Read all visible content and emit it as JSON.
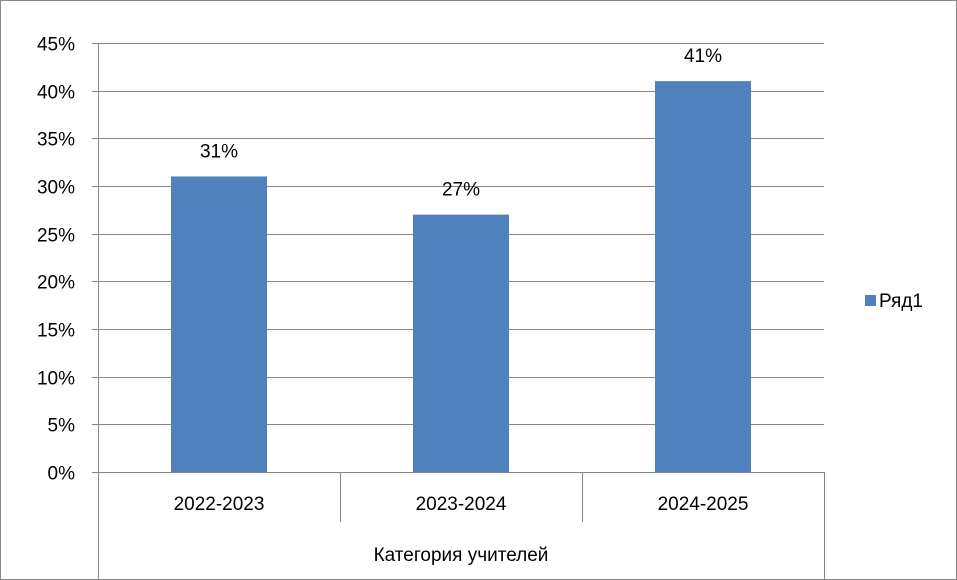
{
  "chart_data": {
    "type": "bar",
    "categories": [
      "2022-2023",
      "2023-2024",
      "2024-2025"
    ],
    "series": [
      {
        "name": "Ряд1",
        "values": [
          0.31,
          0.27,
          0.41
        ],
        "color": "#4F81BD"
      }
    ],
    "data_labels": [
      "31%",
      "27%",
      "41%"
    ],
    "y_ticks": [
      0,
      0.05,
      0.1,
      0.15,
      0.2,
      0.25,
      0.3,
      0.35,
      0.4,
      0.45
    ],
    "y_tick_labels": [
      "0%",
      "5%",
      "10%",
      "15%",
      "20%",
      "25%",
      "30%",
      "35%",
      "40%",
      "45%"
    ],
    "ylim": [
      0,
      0.45
    ],
    "xlabel": "Категория учителей",
    "ylabel": "",
    "title": "",
    "grid": true,
    "legend_position": "right",
    "gridline_color": "#868686"
  }
}
